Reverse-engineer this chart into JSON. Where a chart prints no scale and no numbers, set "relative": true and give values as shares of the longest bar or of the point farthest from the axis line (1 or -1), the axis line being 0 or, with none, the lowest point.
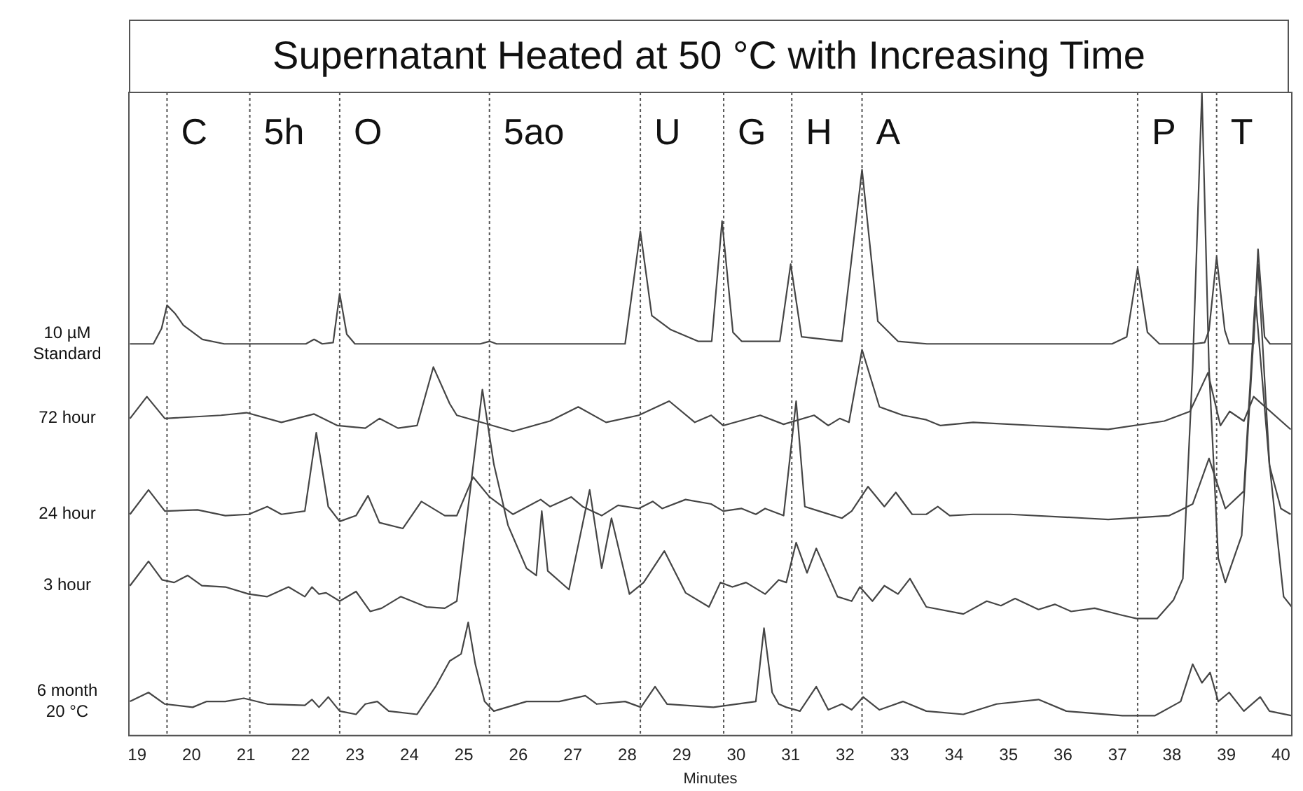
{
  "chart_data": {
    "type": "line",
    "title": "Supernatant Heated at 50 °C with Increasing Time",
    "xlabel": "Minutes",
    "relative": true,
    "marker": "none",
    "xlim": [
      18.85,
      40.2
    ],
    "xticks": [
      19,
      20,
      21,
      22,
      23,
      24,
      25,
      26,
      27,
      28,
      29,
      30,
      31,
      32,
      33,
      34,
      35,
      36,
      37,
      38,
      39,
      40
    ],
    "ref_lines": [
      {
        "axis": "x",
        "value": 19.55,
        "label": "C",
        "line_style": "dotted"
      },
      {
        "axis": "x",
        "value": 21.07,
        "label": "5h",
        "line_style": "dotted"
      },
      {
        "axis": "x",
        "value": 22.72,
        "label": "O",
        "line_style": "dotted"
      },
      {
        "axis": "x",
        "value": 25.47,
        "label": "5ao",
        "line_style": "dotted"
      },
      {
        "axis": "x",
        "value": 28.24,
        "label": "U",
        "line_style": "dotted"
      },
      {
        "axis": "x",
        "value": 29.77,
        "label": "G",
        "line_style": "dotted"
      },
      {
        "axis": "x",
        "value": 31.02,
        "label": "H",
        "line_style": "dotted"
      },
      {
        "axis": "x",
        "value": 32.31,
        "label": "A",
        "line_style": "dotted"
      },
      {
        "axis": "x",
        "value": 37.37,
        "label": "P",
        "line_style": "dotted"
      },
      {
        "axis": "x",
        "value": 38.82,
        "label": "T",
        "line_style": "dotted"
      }
    ],
    "series": [
      {
        "name": "10 µM Standard",
        "color": "#454545",
        "x": [
          18.87,
          19.3,
          19.45,
          19.55,
          19.7,
          19.85,
          20.2,
          20.6,
          22.1,
          22.25,
          22.4,
          22.6,
          22.72,
          22.85,
          23.0,
          25.3,
          25.47,
          25.6,
          27.96,
          28.24,
          28.45,
          28.8,
          29.3,
          29.55,
          29.74,
          29.94,
          30.1,
          30.8,
          31.0,
          31.2,
          31.94,
          32.31,
          32.6,
          32.97,
          33.5,
          36.9,
          37.17,
          37.37,
          37.55,
          37.77,
          38.4,
          38.6,
          38.68,
          38.82,
          38.97,
          39.05,
          39.5,
          39.58,
          39.7,
          39.8,
          40.2
        ],
        "values": [
          0.609,
          0.609,
          0.633,
          0.669,
          0.656,
          0.638,
          0.616,
          0.609,
          0.609,
          0.616,
          0.609,
          0.611,
          0.687,
          0.624,
          0.609,
          0.609,
          0.613,
          0.609,
          0.609,
          0.784,
          0.653,
          0.631,
          0.613,
          0.613,
          0.8,
          0.627,
          0.613,
          0.613,
          0.733,
          0.62,
          0.613,
          0.88,
          0.644,
          0.613,
          0.609,
          0.609,
          0.62,
          0.727,
          0.627,
          0.609,
          0.609,
          0.611,
          0.63,
          0.744,
          0.63,
          0.609,
          0.609,
          0.756,
          0.62,
          0.609,
          0.609
        ]
      },
      {
        "name": "72 hour",
        "color": "#454545",
        "x": [
          18.87,
          19.18,
          19.51,
          20.54,
          21.01,
          21.65,
          22.25,
          22.68,
          23.19,
          23.45,
          23.79,
          24.14,
          24.44,
          24.74,
          24.87,
          25.9,
          26.58,
          27.1,
          27.61,
          28.21,
          28.77,
          29.24,
          29.54,
          29.76,
          30.44,
          30.87,
          31.43,
          31.69,
          31.9,
          32.07,
          32.31,
          32.63,
          33.06,
          33.49,
          33.75,
          34.35,
          36.83,
          37.86,
          38.33,
          38.66,
          38.89,
          39.06,
          39.32,
          39.5,
          40.18
        ],
        "values": [
          0.493,
          0.527,
          0.493,
          0.498,
          0.502,
          0.487,
          0.5,
          0.482,
          0.478,
          0.493,
          0.478,
          0.482,
          0.573,
          0.516,
          0.498,
          0.473,
          0.489,
          0.511,
          0.487,
          0.498,
          0.52,
          0.487,
          0.498,
          0.482,
          0.498,
          0.484,
          0.498,
          0.482,
          0.493,
          0.487,
          0.6,
          0.511,
          0.498,
          0.491,
          0.482,
          0.487,
          0.476,
          0.489,
          0.504,
          0.564,
          0.482,
          0.504,
          0.489,
          0.527,
          0.476
        ]
      },
      {
        "name": "24 hour",
        "color": "#454545",
        "x": [
          18.87,
          19.21,
          19.51,
          20.11,
          20.62,
          21.05,
          21.39,
          21.65,
          22.08,
          22.29,
          22.51,
          22.72,
          23.02,
          23.24,
          23.45,
          23.88,
          24.22,
          24.65,
          24.87,
          25.17,
          25.47,
          25.9,
          26.41,
          26.58,
          26.97,
          27.18,
          27.53,
          27.83,
          28.21,
          28.47,
          28.64,
          29.07,
          29.54,
          29.76,
          30.1,
          30.36,
          30.53,
          30.87,
          31.1,
          31.26,
          31.52,
          31.94,
          32.12,
          32.42,
          32.72,
          32.93,
          33.23,
          33.49,
          33.7,
          33.92,
          34.35,
          35.03,
          36.4,
          36.83,
          37.95,
          38.12,
          38.38,
          38.68,
          38.98,
          39.32,
          39.53,
          39.79,
          40.0,
          40.18
        ],
        "values": [
          0.344,
          0.382,
          0.349,
          0.351,
          0.342,
          0.344,
          0.356,
          0.344,
          0.349,
          0.471,
          0.356,
          0.333,
          0.342,
          0.373,
          0.331,
          0.322,
          0.364,
          0.342,
          0.342,
          0.402,
          0.371,
          0.344,
          0.367,
          0.356,
          0.371,
          0.356,
          0.342,
          0.358,
          0.353,
          0.364,
          0.353,
          0.367,
          0.36,
          0.349,
          0.353,
          0.344,
          0.353,
          0.342,
          0.52,
          0.356,
          0.349,
          0.338,
          0.349,
          0.387,
          0.356,
          0.378,
          0.344,
          0.344,
          0.356,
          0.342,
          0.344,
          0.344,
          0.338,
          0.336,
          0.342,
          0.349,
          0.36,
          0.431,
          0.353,
          0.38,
          0.682,
          0.42,
          0.353,
          0.344
        ]
      },
      {
        "name": "3 hour",
        "color": "#454545",
        "x": [
          18.87,
          19.21,
          19.46,
          19.68,
          19.93,
          20.19,
          20.62,
          21.05,
          21.39,
          21.78,
          22.08,
          22.21,
          22.34,
          22.47,
          22.72,
          23.02,
          23.28,
          23.49,
          23.84,
          24.31,
          24.65,
          24.87,
          25.34,
          25.55,
          25.81,
          26.15,
          26.33,
          26.43,
          26.54,
          26.93,
          27.31,
          27.53,
          27.71,
          28.04,
          28.3,
          28.68,
          29.07,
          29.5,
          29.71,
          29.93,
          30.18,
          30.53,
          30.78,
          30.92,
          31.1,
          31.3,
          31.47,
          31.86,
          32.12,
          32.27,
          32.5,
          32.72,
          32.97,
          33.19,
          33.49,
          34.17,
          34.6,
          34.86,
          35.12,
          35.55,
          35.85,
          36.15,
          36.58,
          37.09,
          37.35,
          37.73,
          38.03,
          38.2,
          38.38,
          38.55,
          38.68,
          38.85,
          38.98,
          39.28,
          39.58,
          39.79,
          40.05,
          40.2
        ],
        "values": [
          0.233,
          0.271,
          0.242,
          0.238,
          0.249,
          0.233,
          0.231,
          0.22,
          0.216,
          0.231,
          0.216,
          0.231,
          0.22,
          0.222,
          0.209,
          0.224,
          0.193,
          0.198,
          0.216,
          0.2,
          0.198,
          0.209,
          0.538,
          0.422,
          0.327,
          0.26,
          0.249,
          0.349,
          0.256,
          0.227,
          0.382,
          0.26,
          0.338,
          0.22,
          0.238,
          0.287,
          0.222,
          0.2,
          0.238,
          0.231,
          0.238,
          0.22,
          0.242,
          0.238,
          0.3,
          0.253,
          0.291,
          0.216,
          0.209,
          0.231,
          0.209,
          0.233,
          0.22,
          0.244,
          0.2,
          0.189,
          0.209,
          0.202,
          0.213,
          0.196,
          0.204,
          0.193,
          0.198,
          0.187,
          0.182,
          0.182,
          0.211,
          0.244,
          0.571,
          1,
          0.571,
          0.276,
          0.238,
          0.311,
          0.733,
          0.422,
          0.216,
          0.2
        ]
      },
      {
        "name": "6 month 20 °C",
        "color": "#454545",
        "x": [
          18.87,
          19.21,
          19.51,
          20.02,
          20.28,
          20.62,
          20.96,
          21.39,
          22.08,
          22.21,
          22.34,
          22.51,
          22.72,
          23.02,
          23.19,
          23.41,
          23.62,
          24.14,
          24.48,
          24.74,
          24.95,
          25.08,
          25.21,
          25.38,
          25.55,
          26.15,
          26.75,
          27.23,
          27.44,
          27.96,
          28.25,
          28.51,
          28.73,
          29.58,
          30.36,
          30.51,
          30.66,
          30.78,
          30.92,
          31.17,
          31.47,
          31.69,
          31.94,
          32.12,
          32.33,
          32.63,
          33.06,
          33.49,
          34.17,
          34.78,
          35.55,
          36.06,
          37.09,
          37.69,
          38.16,
          38.38,
          38.55,
          38.7,
          38.85,
          39.05,
          39.32,
          39.62,
          39.79,
          40.2
        ],
        "values": [
          0.053,
          0.067,
          0.049,
          0.044,
          0.053,
          0.053,
          0.058,
          0.049,
          0.047,
          0.056,
          0.044,
          0.06,
          0.038,
          0.033,
          0.049,
          0.053,
          0.038,
          0.033,
          0.076,
          0.116,
          0.127,
          0.176,
          0.111,
          0.053,
          0.038,
          0.053,
          0.053,
          0.062,
          0.049,
          0.053,
          0.044,
          0.076,
          0.049,
          0.044,
          0.053,
          0.167,
          0.067,
          0.049,
          0.044,
          0.038,
          0.076,
          0.04,
          0.049,
          0.04,
          0.06,
          0.04,
          0.053,
          0.038,
          0.033,
          0.049,
          0.056,
          0.038,
          0.031,
          0.031,
          0.053,
          0.111,
          0.082,
          0.098,
          0.053,
          0.067,
          0.038,
          0.06,
          0.038,
          0.031
        ]
      }
    ]
  }
}
